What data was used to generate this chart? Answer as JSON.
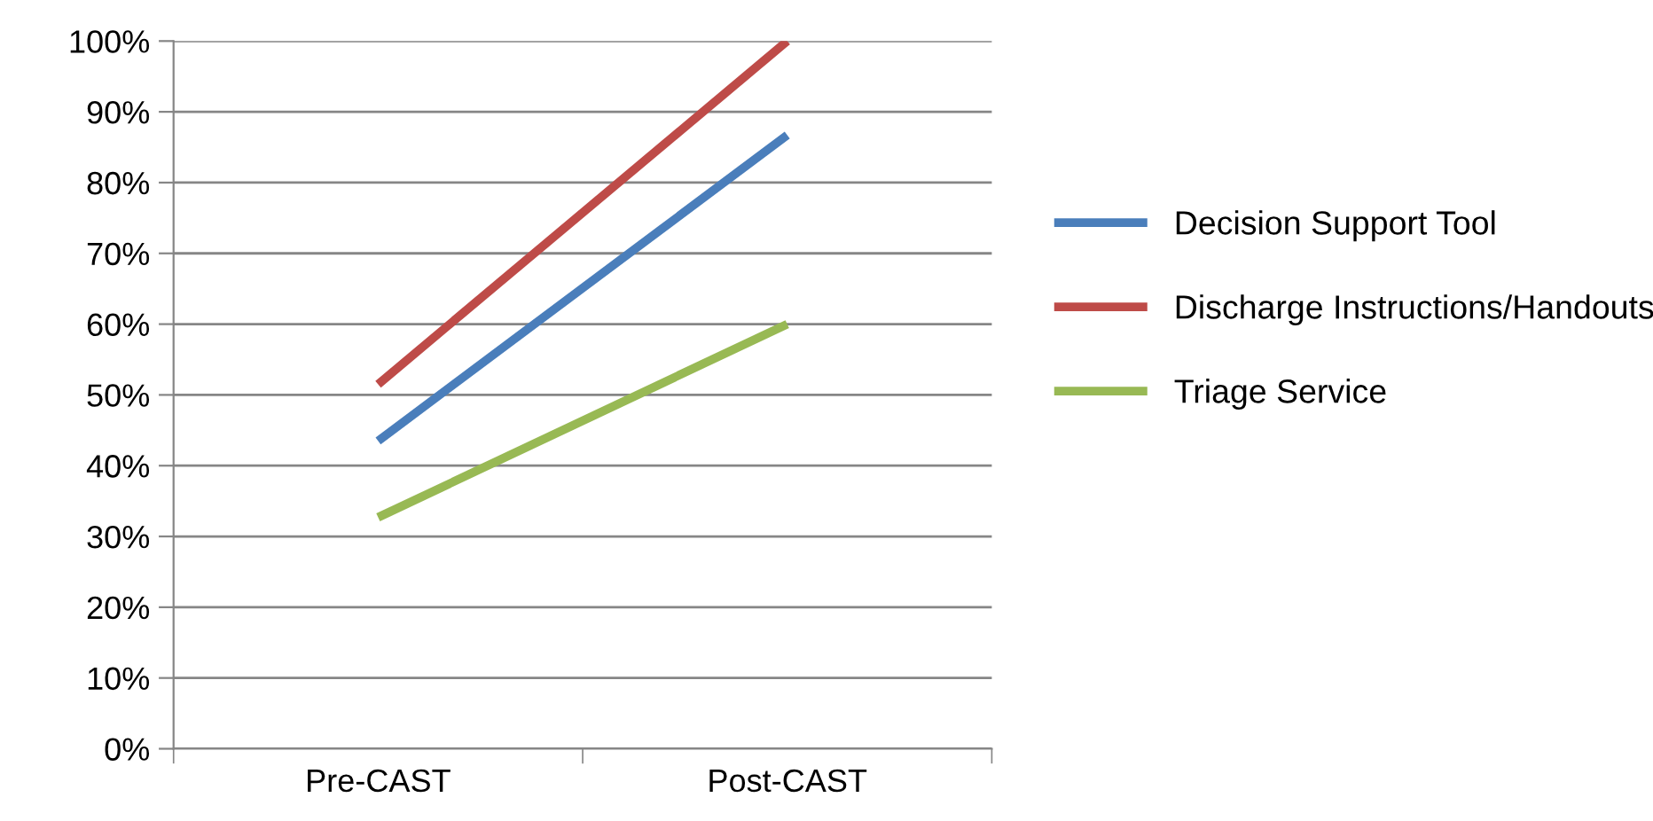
{
  "chart_data": {
    "type": "line",
    "categories": [
      "Pre-CAST",
      "Post-CAST"
    ],
    "series": [
      {
        "name": "Decision Support Tool",
        "color": "#4a7ebb",
        "values": [
          43.5,
          86.7
        ]
      },
      {
        "name": "Discharge Instructions/Handouts",
        "color": "#be4b48",
        "values": [
          51.5,
          100
        ]
      },
      {
        "name": "Triage Service",
        "color": "#98b954",
        "values": [
          32.7,
          60
        ]
      }
    ],
    "ylim": [
      0,
      100
    ],
    "yticks": [
      {
        "value": 0,
        "label": "0%"
      },
      {
        "value": 10,
        "label": "10%"
      },
      {
        "value": 20,
        "label": "20%"
      },
      {
        "value": 30,
        "label": "30%"
      },
      {
        "value": 40,
        "label": "40%"
      },
      {
        "value": 50,
        "label": "50%"
      },
      {
        "value": 60,
        "label": "60%"
      },
      {
        "value": 70,
        "label": "70%"
      },
      {
        "value": 80,
        "label": "80%"
      },
      {
        "value": 90,
        "label": "90%"
      },
      {
        "value": 100,
        "label": "100%"
      }
    ],
    "grid": "y",
    "legend": "right",
    "marker": "none",
    "line_style": "solid"
  }
}
